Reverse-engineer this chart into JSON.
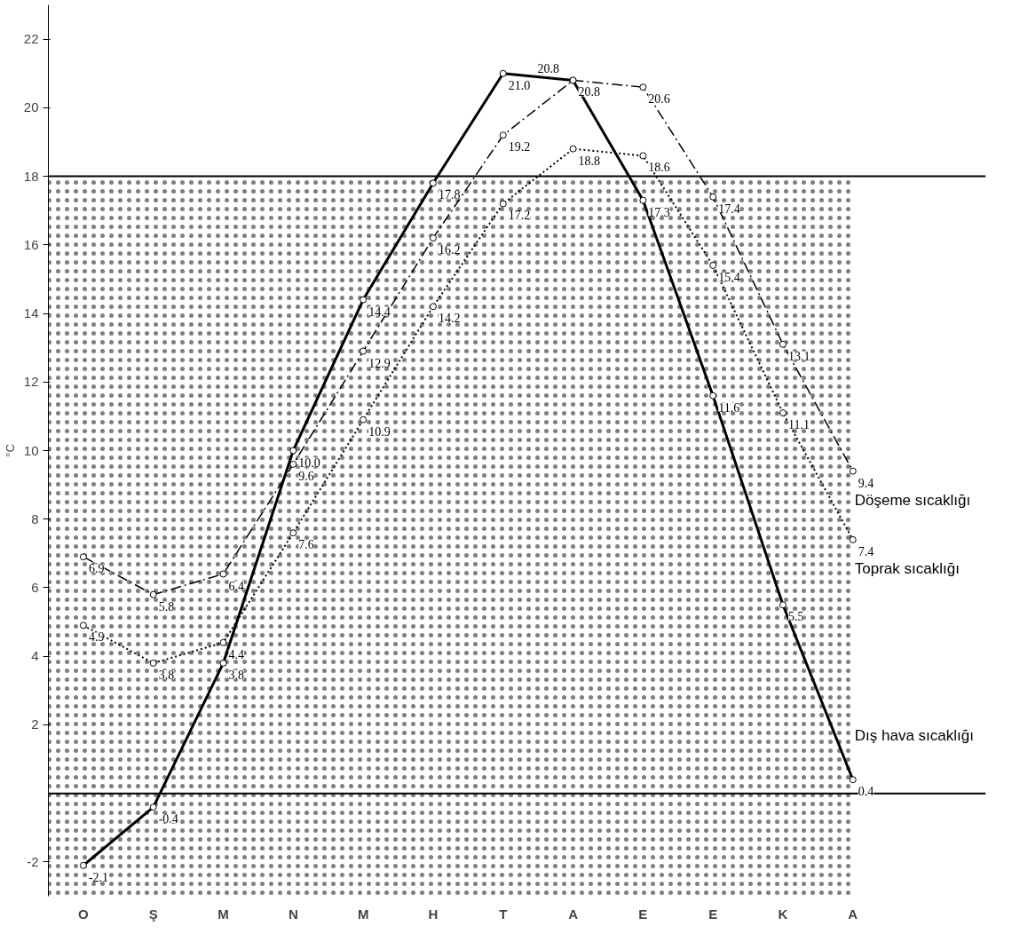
{
  "chart_data": {
    "type": "line",
    "ylabel": "°C",
    "categories": [
      "O",
      "Ş",
      "M",
      "N",
      "M",
      "H",
      "T",
      "A",
      "E",
      "E",
      "K",
      "A"
    ],
    "series": [
      {
        "name": "Dış hava sıcaklığı",
        "color": "#000000",
        "line_style": "solid",
        "values": [
          -2.1,
          -0.4,
          3.8,
          10.0,
          14.4,
          17.8,
          21.0,
          20.8,
          17.3,
          11.6,
          5.5,
          0.4
        ],
        "value_labels": [
          "-2.1",
          "-0.4",
          "3.8",
          "10.0",
          "14.4",
          "17.8",
          "21.0",
          "20.8",
          "17.3",
          "11.6",
          "5.5",
          "0.4"
        ]
      },
      {
        "name": "Döşeme sıcaklığı",
        "color": "#000000",
        "line_style": "dashed",
        "values": [
          6.9,
          5.8,
          6.4,
          9.6,
          12.9,
          16.2,
          19.2,
          20.8,
          20.6,
          17.4,
          13.1,
          9.4
        ],
        "value_labels": [
          "6.9",
          "5.8",
          "6.4",
          "9.6",
          "12.9",
          "16.2",
          "19.2",
          "20.8",
          "20.6",
          "17.4",
          "13.1",
          "9.4"
        ]
      },
      {
        "name": "Toprak sıcaklığı",
        "color": "#000000",
        "line_style": "dotted",
        "values": [
          4.9,
          3.8,
          4.4,
          7.6,
          10.9,
          14.2,
          17.2,
          18.8,
          18.6,
          15.4,
          11.1,
          7.4
        ],
        "value_labels": [
          "4.9",
          "3.8",
          "4.4",
          "7.6",
          "10.9",
          "14.2",
          "17.2",
          "18.8",
          "18.6",
          "15.4",
          "11.1",
          "7.4"
        ]
      }
    ],
    "ylim": [
      -3,
      23
    ],
    "yticks": [
      -2,
      2,
      4,
      6,
      8,
      10,
      12,
      14,
      16,
      18,
      20,
      22
    ],
    "ref_lines": [
      {
        "axis": "y",
        "value": 18
      },
      {
        "axis": "y",
        "value": 0
      }
    ],
    "bands": [
      {
        "axis": "y",
        "from": -3,
        "to": 18,
        "color": "#000000"
      }
    ],
    "marker": "circle",
    "grid": false
  }
}
